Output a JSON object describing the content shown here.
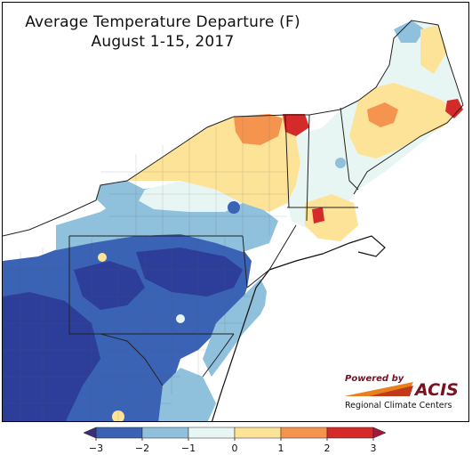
{
  "title": {
    "line1": "Average Temperature Departure (F)",
    "line2": "August 1-15, 2017"
  },
  "logo": {
    "powered_by": "Powered by",
    "brand": "ACIS",
    "org": "Regional Climate Centers"
  },
  "colors": {
    "c_neg3": "#2c3e9a",
    "c_neg2": "#3b63b5",
    "c_neg1": "#8fc0dc",
    "c_zero": "#e8f6f3",
    "c_pos1": "#fde397",
    "c_pos2": "#f5944f",
    "c_pos3": "#d42a2a",
    "under": "#3a2d7a",
    "over": "#a11a3d"
  },
  "colorbar": {
    "min": -3,
    "max": 3,
    "ticks": [
      {
        "value": -3,
        "label": "−3"
      },
      {
        "value": -2,
        "label": "−2"
      },
      {
        "value": -1,
        "label": "−1"
      },
      {
        "value": 0,
        "label": "0"
      },
      {
        "value": 1,
        "label": "1"
      },
      {
        "value": 2,
        "label": "2"
      },
      {
        "value": 3,
        "label": "3"
      }
    ]
  }
}
